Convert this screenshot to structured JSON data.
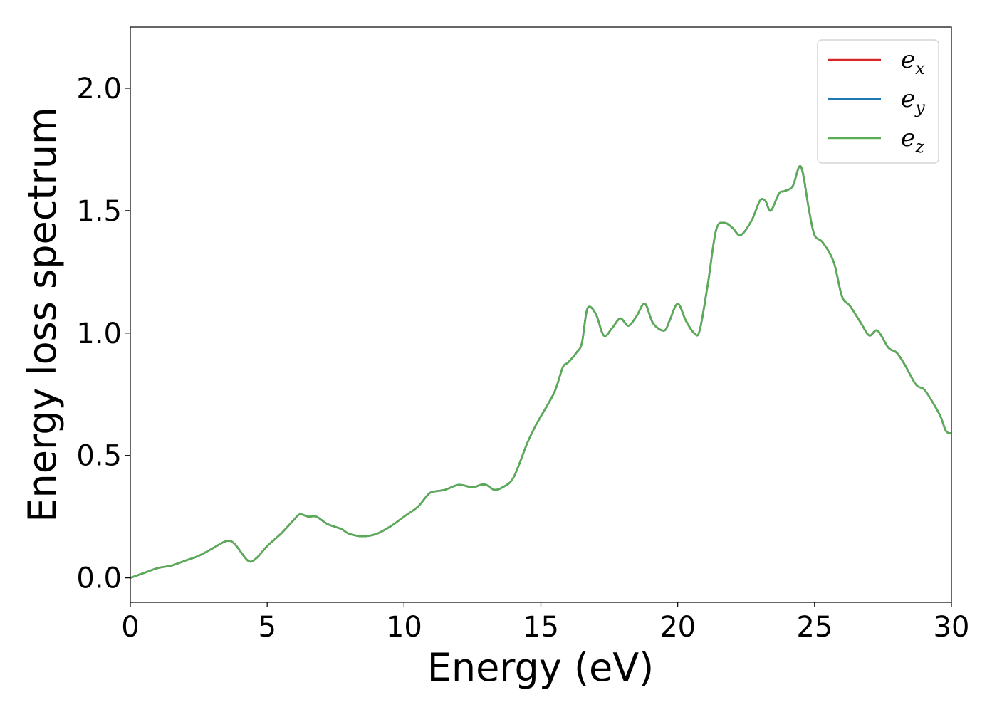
{
  "chart_data": {
    "type": "line",
    "title": "",
    "xlabel": "Energy (eV)",
    "ylabel": "Energy loss spectrum",
    "xlim": [
      0,
      30
    ],
    "ylim": [
      -0.1,
      2.25
    ],
    "xticks": [
      0,
      5,
      10,
      15,
      20,
      25,
      30
    ],
    "xtick_labels": [
      "0",
      "5",
      "10",
      "15",
      "20",
      "25",
      "30"
    ],
    "yticks": [
      0.0,
      0.5,
      1.0,
      1.5,
      2.0
    ],
    "ytick_labels": [
      "0.0",
      "0.5",
      "1.0",
      "1.5",
      "2.0"
    ],
    "grid": false,
    "legend_position": "top-right",
    "x": [
      0,
      0.5,
      1.0,
      1.5,
      2.0,
      2.5,
      3.0,
      3.5,
      3.8,
      4.3,
      4.6,
      5.0,
      5.5,
      6.0,
      6.2,
      6.5,
      6.8,
      7.2,
      7.7,
      8.0,
      8.5,
      9.0,
      9.5,
      10.0,
      10.5,
      10.8,
      11.0,
      11.5,
      12.0,
      12.5,
      12.8,
      13.0,
      13.3,
      13.6,
      14.0,
      14.5,
      14.8,
      15.0,
      15.5,
      15.8,
      16.0,
      16.3,
      16.5,
      16.7,
      17.0,
      17.3,
      17.6,
      17.9,
      18.2,
      18.5,
      18.8,
      19.1,
      19.5,
      19.7,
      20.0,
      20.3,
      20.6,
      20.8,
      21.1,
      21.4,
      21.7,
      22.0,
      22.3,
      22.7,
      23.0,
      23.2,
      23.4,
      23.7,
      23.9,
      24.2,
      24.5,
      24.8,
      25.0,
      25.3,
      25.7,
      26.0,
      26.3,
      26.7,
      27.0,
      27.3,
      27.7,
      28.0,
      28.3,
      28.7,
      29.0,
      29.3,
      29.6,
      29.8,
      30.0
    ],
    "series": [
      {
        "name": "e_x",
        "color": "#d62728",
        "values": [
          0.0,
          0.02,
          0.04,
          0.05,
          0.07,
          0.09,
          0.12,
          0.15,
          0.14,
          0.07,
          0.08,
          0.13,
          0.18,
          0.24,
          0.26,
          0.25,
          0.25,
          0.22,
          0.2,
          0.18,
          0.17,
          0.18,
          0.21,
          0.25,
          0.29,
          0.33,
          0.35,
          0.36,
          0.38,
          0.37,
          0.38,
          0.38,
          0.36,
          0.37,
          0.41,
          0.55,
          0.62,
          0.66,
          0.76,
          0.86,
          0.88,
          0.92,
          0.96,
          1.1,
          1.08,
          0.99,
          1.02,
          1.06,
          1.03,
          1.07,
          1.12,
          1.04,
          1.01,
          1.05,
          1.12,
          1.05,
          1.0,
          1.01,
          1.2,
          1.42,
          1.45,
          1.43,
          1.4,
          1.46,
          1.54,
          1.54,
          1.5,
          1.57,
          1.58,
          1.6,
          1.68,
          1.5,
          1.4,
          1.37,
          1.29,
          1.15,
          1.11,
          1.04,
          0.99,
          1.01,
          0.94,
          0.92,
          0.87,
          0.79,
          0.77,
          0.72,
          0.66,
          0.6,
          0.59
        ]
      },
      {
        "name": "e_y",
        "color": "#1f77b4",
        "values": [
          0.0,
          0.02,
          0.04,
          0.05,
          0.07,
          0.09,
          0.12,
          0.15,
          0.14,
          0.07,
          0.08,
          0.13,
          0.18,
          0.24,
          0.26,
          0.25,
          0.25,
          0.22,
          0.2,
          0.18,
          0.17,
          0.18,
          0.21,
          0.25,
          0.29,
          0.33,
          0.35,
          0.36,
          0.38,
          0.37,
          0.38,
          0.38,
          0.36,
          0.37,
          0.41,
          0.55,
          0.62,
          0.66,
          0.76,
          0.86,
          0.88,
          0.92,
          0.96,
          1.1,
          1.08,
          0.99,
          1.02,
          1.06,
          1.03,
          1.07,
          1.12,
          1.04,
          1.01,
          1.05,
          1.12,
          1.05,
          1.0,
          1.01,
          1.2,
          1.42,
          1.45,
          1.43,
          1.4,
          1.46,
          1.54,
          1.54,
          1.5,
          1.57,
          1.58,
          1.6,
          1.68,
          1.5,
          1.4,
          1.37,
          1.29,
          1.15,
          1.11,
          1.04,
          0.99,
          1.01,
          0.94,
          0.92,
          0.87,
          0.79,
          0.77,
          0.72,
          0.66,
          0.6,
          0.59
        ]
      },
      {
        "name": "e_z",
        "color": "#5aac55",
        "values": [
          0.0,
          0.02,
          0.04,
          0.05,
          0.07,
          0.09,
          0.12,
          0.15,
          0.14,
          0.07,
          0.08,
          0.13,
          0.18,
          0.24,
          0.26,
          0.25,
          0.25,
          0.22,
          0.2,
          0.18,
          0.17,
          0.18,
          0.21,
          0.25,
          0.29,
          0.33,
          0.35,
          0.36,
          0.38,
          0.37,
          0.38,
          0.38,
          0.36,
          0.37,
          0.41,
          0.55,
          0.62,
          0.66,
          0.76,
          0.86,
          0.88,
          0.92,
          0.96,
          1.1,
          1.08,
          0.99,
          1.02,
          1.06,
          1.03,
          1.07,
          1.12,
          1.04,
          1.01,
          1.05,
          1.12,
          1.05,
          1.0,
          1.01,
          1.2,
          1.42,
          1.45,
          1.43,
          1.4,
          1.46,
          1.54,
          1.54,
          1.5,
          1.57,
          1.58,
          1.6,
          1.68,
          1.5,
          1.4,
          1.37,
          1.29,
          1.15,
          1.11,
          1.04,
          0.99,
          1.01,
          0.94,
          0.92,
          0.87,
          0.79,
          0.77,
          0.72,
          0.66,
          0.6,
          0.59
        ]
      }
    ],
    "legend": [
      {
        "base": "e",
        "sub": "x",
        "color": "#d62728"
      },
      {
        "base": "e",
        "sub": "y",
        "color": "#1f77b4"
      },
      {
        "base": "e",
        "sub": "z",
        "color": "#5aac55"
      }
    ]
  }
}
